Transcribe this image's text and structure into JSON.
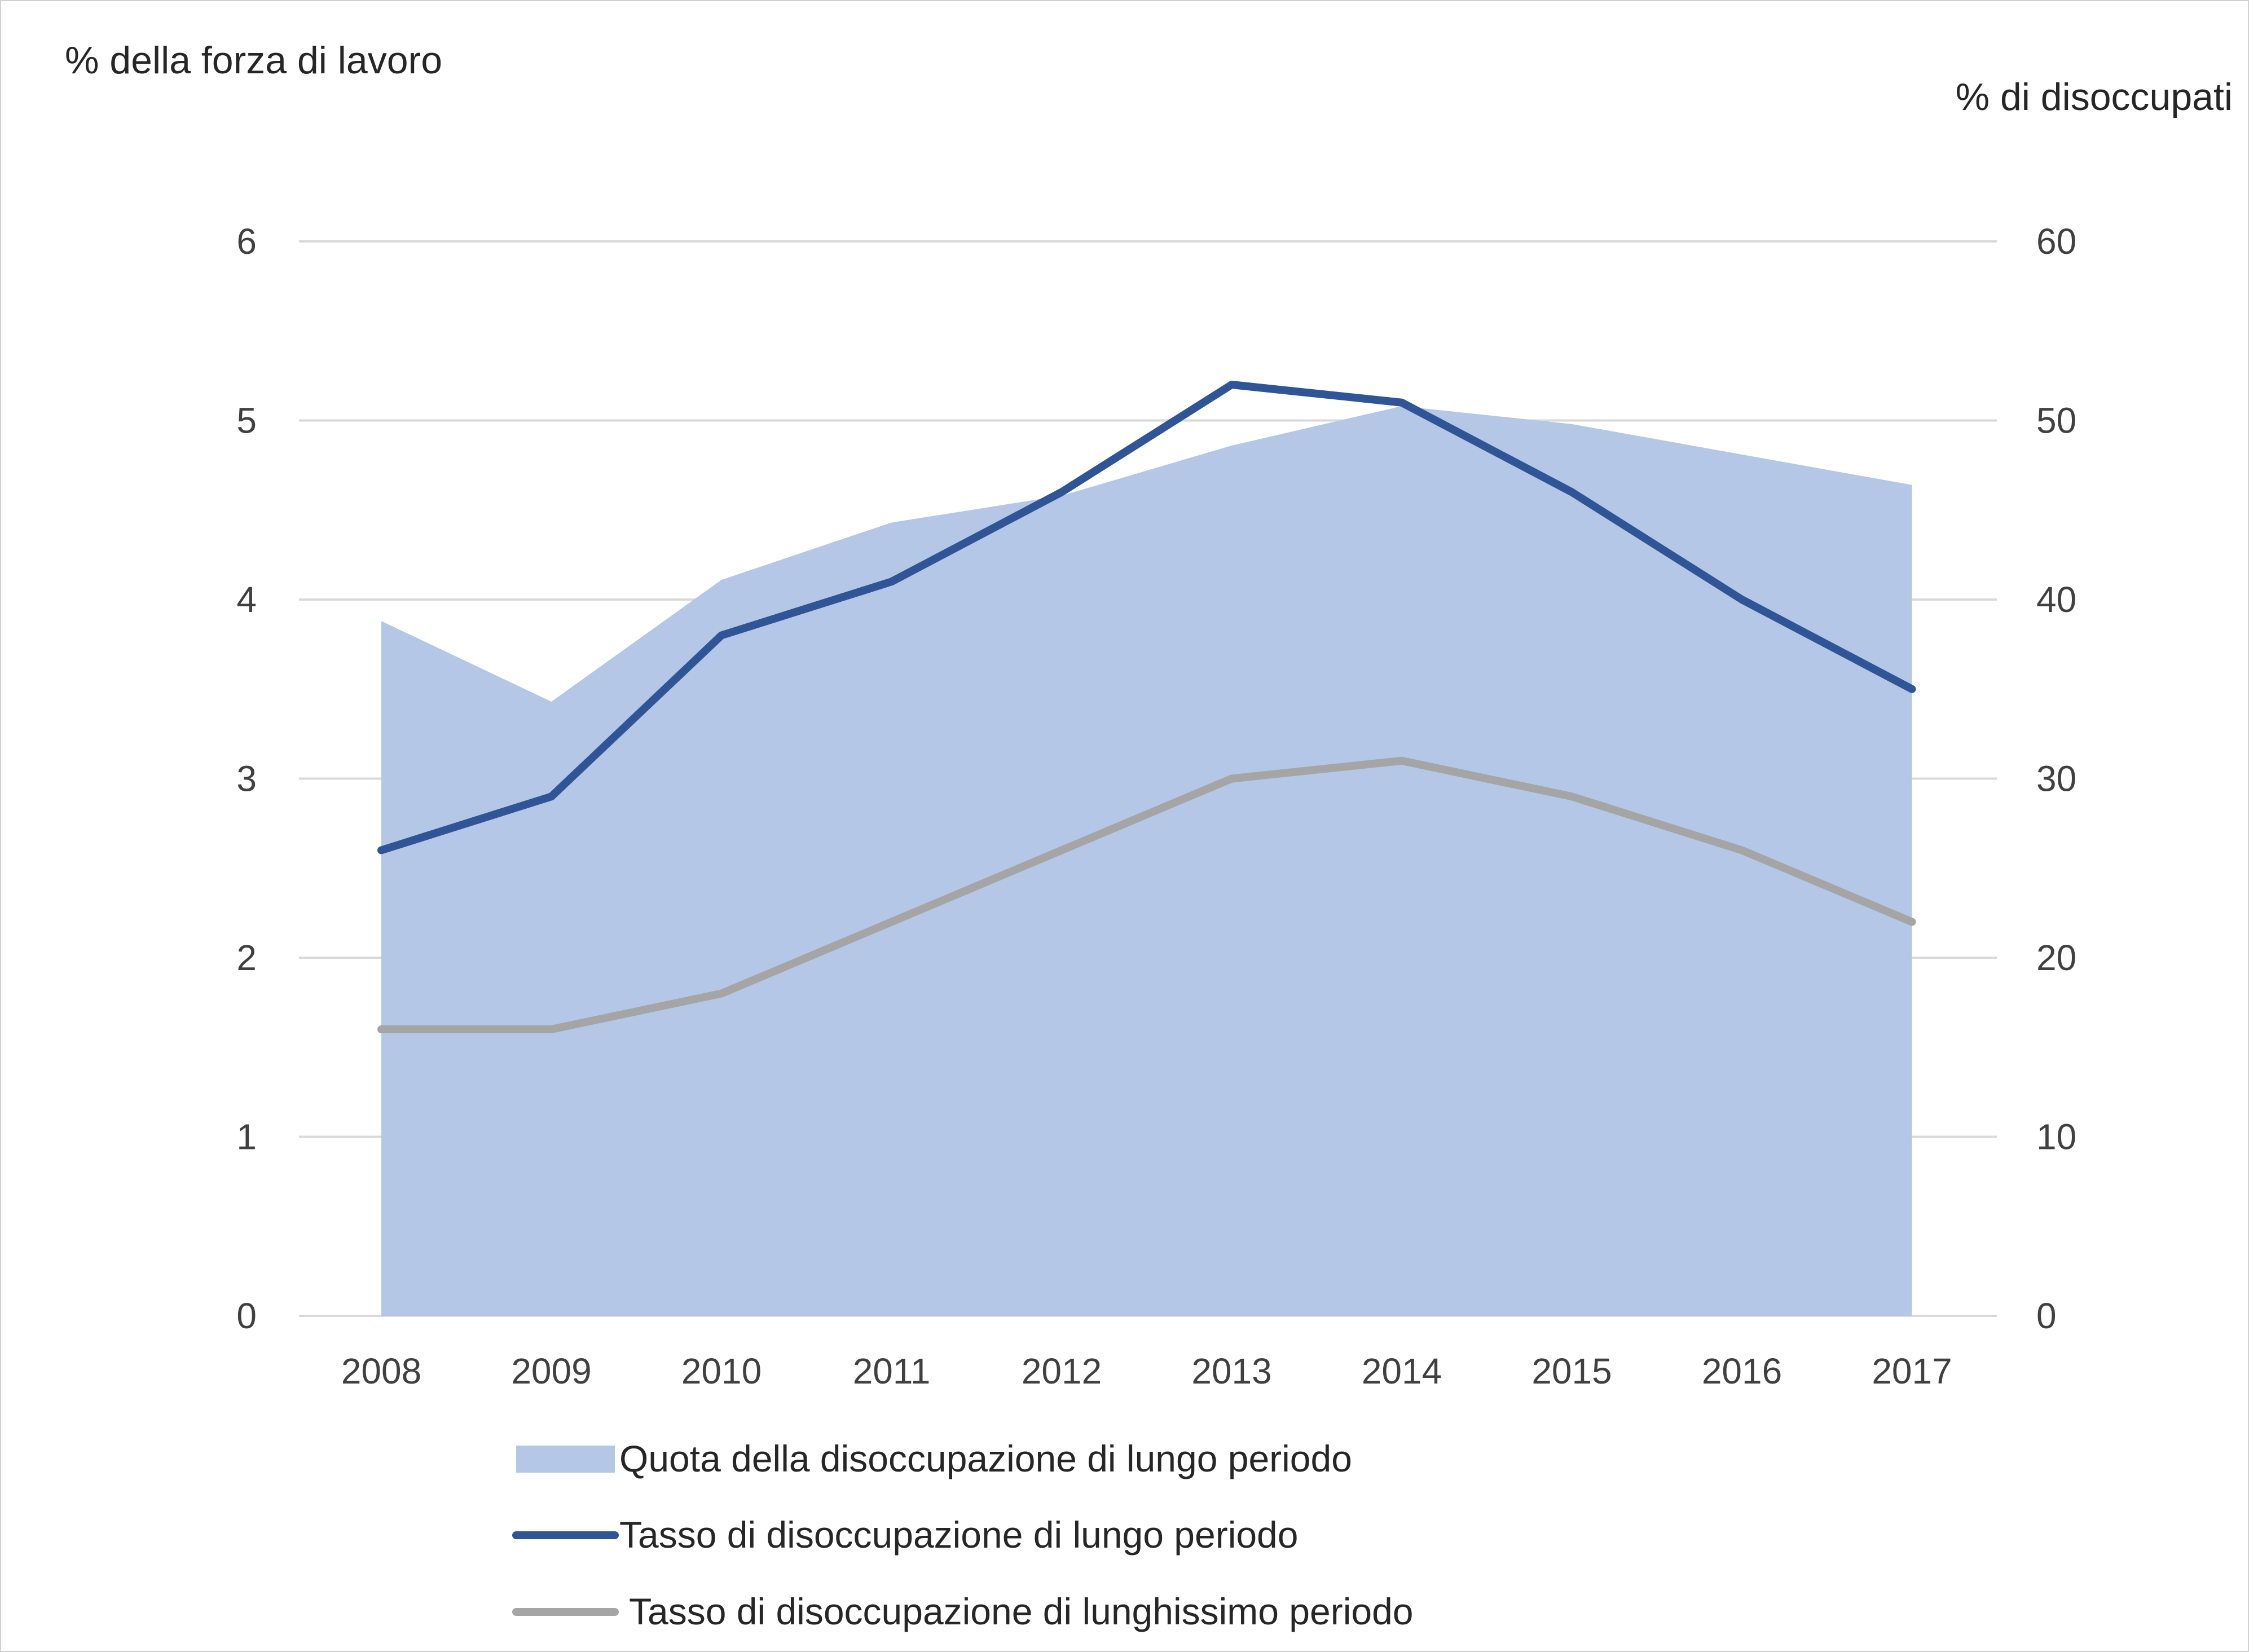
{
  "chart_data": {
    "type": "area+line",
    "categories": [
      "2008",
      "2009",
      "2010",
      "2011",
      "2012",
      "2013",
      "2014",
      "2015",
      "2016",
      "2017"
    ],
    "left_axis": {
      "label": "% della forza di lavoro",
      "range": [
        0,
        6
      ],
      "ticks": [
        "0",
        "1",
        "2",
        "3",
        "4",
        "5",
        "6"
      ]
    },
    "right_axis": {
      "label": "% di disoccupati",
      "range": [
        0,
        60
      ],
      "ticks": [
        "0",
        "10",
        "20",
        "30",
        "40",
        "50",
        "60"
      ]
    },
    "series": [
      {
        "name": "Quota della disoccupazione di lungo periodo",
        "type": "area",
        "axis": "right",
        "color": "#b4c7e7",
        "values": [
          38.8,
          34.3,
          41.1,
          44.3,
          45.8,
          48.6,
          50.8,
          49.8,
          48.1,
          46.4
        ]
      },
      {
        "name": "Tasso di disoccupazione di lungo periodo",
        "type": "line",
        "axis": "left",
        "color": "#2f5597",
        "values": [
          2.6,
          2.9,
          3.8,
          4.1,
          4.6,
          5.2,
          5.1,
          4.6,
          4.0,
          3.5
        ]
      },
      {
        "name": "Tasso di disoccupazione di lunghissimo periodo",
        "type": "line",
        "axis": "left",
        "color": "#a5a5a5",
        "values": [
          1.6,
          1.6,
          1.8,
          2.2,
          2.6,
          3.0,
          3.1,
          2.9,
          2.6,
          2.2
        ]
      }
    ],
    "grid": true,
    "legend_position": "bottom"
  }
}
